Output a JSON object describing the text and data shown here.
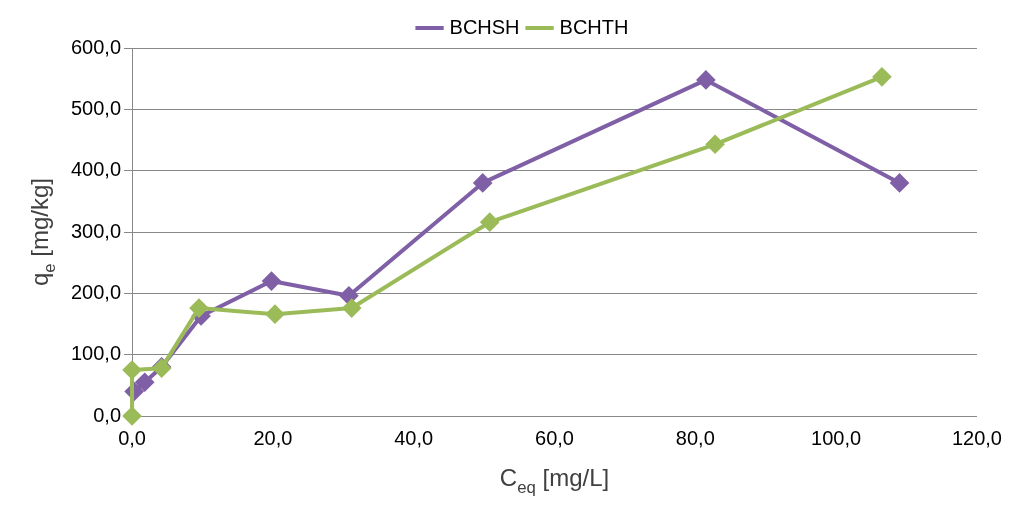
{
  "chart_data": {
    "type": "line",
    "xlabel": "C$_{eq}$ [mg/L]",
    "ylabel": "q$_{e}$ [mg/kg]",
    "xlim": [
      0,
      120
    ],
    "xticks": [
      {
        "value": 0,
        "label": "0,0"
      },
      {
        "value": 20,
        "label": "20,0"
      },
      {
        "value": 40,
        "label": "40,0"
      },
      {
        "value": 60,
        "label": "60,0"
      },
      {
        "value": 80,
        "label": "80,0"
      },
      {
        "value": 100,
        "label": "100,0"
      },
      {
        "value": 120,
        "label": "120,0"
      }
    ],
    "ylim": [
      0,
      600
    ],
    "yticks": [
      {
        "value": 0,
        "label": "0,0"
      },
      {
        "value": 100,
        "label": "100,0"
      },
      {
        "value": 200,
        "label": "200,0"
      },
      {
        "value": 300,
        "label": "300,0"
      },
      {
        "value": 400,
        "label": "400,0"
      },
      {
        "value": 500,
        "label": "500,0"
      },
      {
        "value": 600,
        "label": "600,0"
      }
    ],
    "grid": "y",
    "legend": "top",
    "marker": "diamond",
    "line_style": "solid",
    "series": [
      {
        "name": "BCHSH",
        "color": "#7f5fa6",
        "x": [
          0.3,
          1.8,
          4.2,
          9.8,
          19.8,
          30.8,
          49.8,
          81.5,
          109
        ],
        "values": [
          40,
          55,
          80,
          163,
          220,
          196,
          380,
          548,
          380
        ]
      },
      {
        "name": "BCHTH",
        "color": "#9bbb59",
        "x": [
          0,
          0,
          4.2,
          9.5,
          20.3,
          31.2,
          50.8,
          82.8,
          106.5
        ],
        "values": [
          0,
          75,
          78,
          176,
          166,
          176,
          316,
          443,
          553
        ]
      }
    ]
  }
}
